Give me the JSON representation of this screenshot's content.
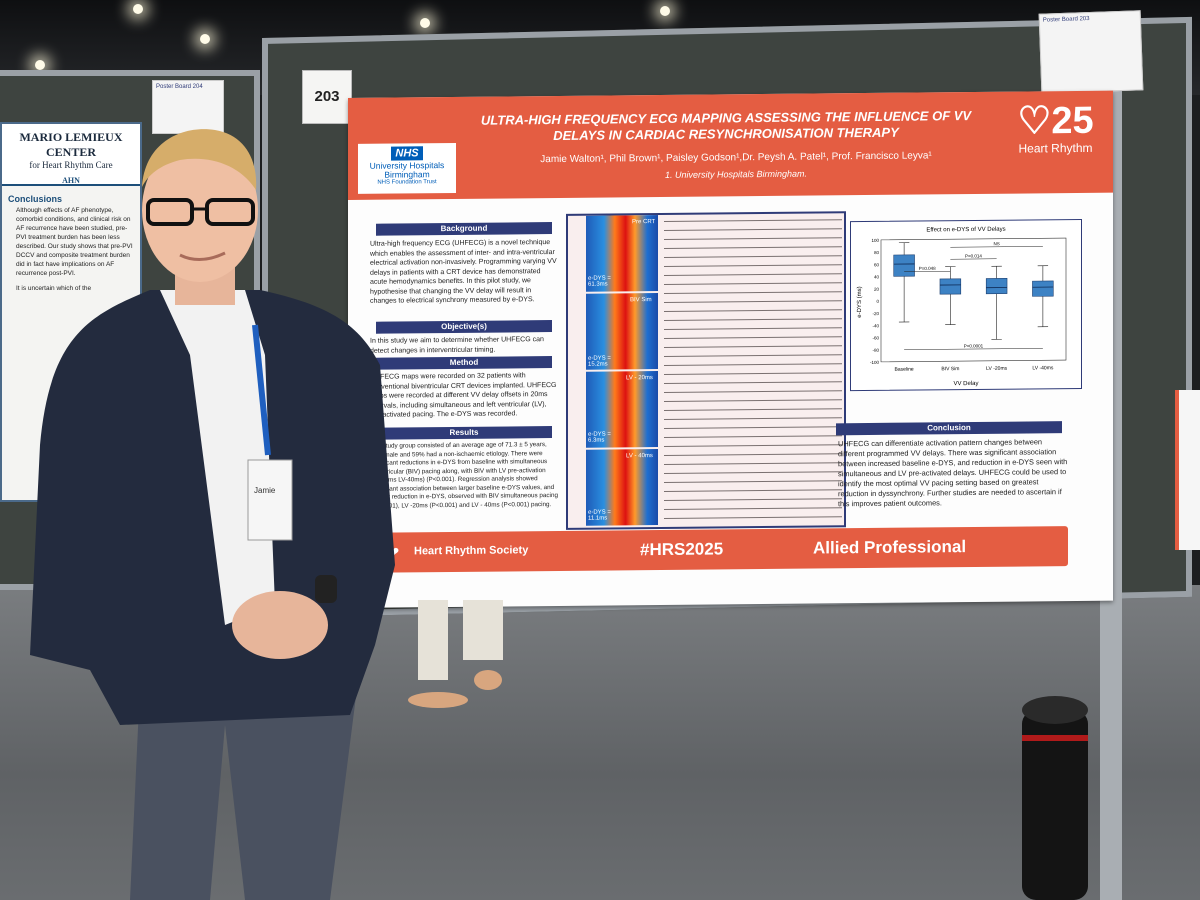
{
  "left_poster": {
    "center_name": "MARIO LEMIEUX CENTER",
    "center_sub": "for Heart Rhythm Care",
    "ahn": "AHN",
    "conclusions_heading": "Conclusions",
    "conclusions_text": "Although effects of AF phenotype, comorbid conditions, and clinical risk on AF recurrence have been studied, pre-PVI treatment burden has been less described. Our study shows that pre-PVI DCCV and composite treatment burden did in fact have implications on AF recurrence post-PVI.",
    "second_text": "It is uncertain which of the"
  },
  "board_card_left": {
    "text": "Poster Board 204"
  },
  "board_card_right": {
    "text": "Poster Board 203"
  },
  "board_number": "203",
  "poster": {
    "title": "ULTRA-HIGH FREQUENCY ECG MAPPING ASSESSING THE INFLUENCE OF VV DELAYS IN CARDIAC RESYNCHRONISATION THERAPY",
    "authors": "Jamie Walton¹, Phil Brown¹, Paisley Godson¹,Dr. Peysh A. Patel¹, Prof. Francisco Leyva¹",
    "affiliation": "1. University Hospitals Birmingham.",
    "nhs_logo": "NHS",
    "nhs_org": "University Hospitals Birmingham",
    "nhs_trust": "NHS Foundation Trust",
    "hr_logo_number": "25",
    "hr_logo_text": "Heart Rhythm",
    "sections": {
      "background_h": "Background",
      "background": "Ultra-high frequency ECG (UHFECG) is a novel technique which enables the assessment of inter- and intra-ventricular electrical activation non-invasively. Programming varying VV delays in patients with a CRT device has demonstrated acute hemodynamics benefits. In this pilot study, we hypothesise that changing the VV delay will result in changes to electrical synchrony measured by e-DYS.",
      "objective_h": "Objective(s)",
      "objective": "In this study we aim to determine whether UHFECG can detect changes in interventricular timing.",
      "method_h": "Method",
      "method": "UHFECG maps were recorded on 32 patients with conventional biventricular CRT devices implanted. UHFECG maps were recorded at different VV delay offsets in 20ms intervals, including simultaneous and left ventricular (LV), pre-activated pacing. The e-DYS was recorded.",
      "results_h": "Results",
      "results": "The study group consisted of an average age of 71.3 ± 5 years, 75% male and 59% had a non-ischaemic etiology. There were significant reductions in e-DYS from baseline with simultaneous biventricular (BIV) pacing along, with BIV with LV pre-activation (LV-20ms LV-40ms) (P<0.001). Regression analysis showed significant association between larger baseline e-DYS values, and greater reduction in e-DYS, observed with BIV simultaneous pacing (P<0.001), LV -20ms (P<0.001) and LV - 40ms (P<0.001) pacing.",
      "conclusion_h": "Conclusion",
      "conclusion": "UHFECG can differentiate activation pattern changes between different programmed VV delays. There was significant association between increased baseline e-DYS, and reduction in e-DYS seen with simultaneous and LV pre-activated delays. UHFECG could be used to identify the most optimal VV pacing setting based on greatest reduction in dyssynchrony. Further studies are needed to ascertain if this improves patient outcomes."
    },
    "ecg_labels": {
      "pre_crt": "Pre CRT",
      "biv_sim": "BIV Sim",
      "lv20": "LV - 20ms",
      "lv40": "LV - 40ms",
      "edys1": "e-DYS = 61.3ms",
      "edys2": "e-DYS = 15.2ms",
      "edys3": "e-DYS = 6.3ms",
      "edys4": "e-DYS = 11.1ms"
    },
    "footer": {
      "society": "Heart Rhythm Society",
      "hashtag": "#HRS2025",
      "track": "Allied Professional"
    }
  },
  "chart_data": {
    "type": "box",
    "title": "Effect on e-DYS of VV Delays",
    "xlabel": "VV Delay",
    "ylabel": "e-DYS (ms)",
    "ylim": [
      -100,
      100
    ],
    "yticks": [
      -100,
      -80,
      -60,
      -40,
      -20,
      0,
      20,
      40,
      60,
      80,
      100
    ],
    "categories": [
      "Baseline",
      "BIV Sim",
      "LV -20ms",
      "LV -40ms"
    ],
    "boxes": [
      {
        "name": "Baseline",
        "min": -35,
        "q1": 40,
        "median": 60,
        "q3": 75,
        "max": 95
      },
      {
        "name": "BIV Sim",
        "min": -40,
        "q1": 10,
        "median": 25,
        "q3": 35,
        "max": 55
      },
      {
        "name": "LV -20ms",
        "min": -65,
        "q1": 10,
        "median": 20,
        "q3": 35,
        "max": 55
      },
      {
        "name": "LV -40ms",
        "min": -45,
        "q1": 5,
        "median": 20,
        "q3": 30,
        "max": 55
      }
    ],
    "annotations": [
      "NS",
      "P=0.014",
      "P=0.048",
      "P<0.0001"
    ],
    "colors": {
      "box": "#3d82c4"
    }
  },
  "person_badge": {
    "name": "Jamie"
  }
}
